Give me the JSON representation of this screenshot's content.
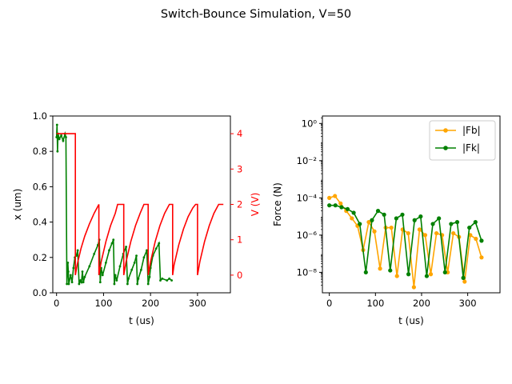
{
  "figure": {
    "title": "Switch-Bounce Simulation, V=50"
  },
  "colors": {
    "x_series": "#008000",
    "v_series": "#ff0000",
    "fb": "#ffa500",
    "fk": "#008000",
    "axis": "#000000"
  },
  "chart_data": [
    {
      "type": "line",
      "title": "",
      "xlabel": "t (us)",
      "ylabel": "x (um)",
      "ylabel_right": "V (V)",
      "xlim": [
        -8,
        370
      ],
      "ylim": [
        0.0,
        1.0
      ],
      "ylim_right": [
        -0.5,
        4.5
      ],
      "xticks": [
        0,
        100,
        200,
        300
      ],
      "yticks": [
        0.0,
        0.2,
        0.4,
        0.6,
        0.8,
        1.0
      ],
      "yticks_right": [
        0,
        1,
        2,
        3,
        4
      ],
      "grid": false,
      "series": [
        {
          "axis": "left",
          "color": "#008000",
          "x": [
            0,
            1,
            2,
            3,
            6,
            10,
            14,
            18,
            20,
            22,
            24,
            25,
            26,
            30,
            33,
            36,
            39,
            42,
            45,
            48,
            51,
            53,
            55,
            57,
            60,
            70,
            80,
            88,
            91,
            93,
            95,
            98,
            105,
            112,
            118,
            121,
            123,
            125,
            128,
            135,
            142,
            148,
            151,
            153,
            160,
            166,
            170,
            172,
            174,
            180,
            186,
            192,
            195,
            198,
            200,
            205,
            212,
            218,
            221,
            225,
            235,
            240,
            245
          ],
          "y": [
            0.88,
            0.95,
            0.8,
            0.9,
            0.87,
            0.89,
            0.86,
            0.9,
            0.88,
            0.05,
            0.17,
            0.12,
            0.05,
            0.1,
            0.06,
            0.14,
            0.2,
            0.21,
            0.24,
            0.05,
            0.07,
            0.06,
            0.12,
            0.06,
            0.09,
            0.15,
            0.22,
            0.27,
            0.3,
            0.06,
            0.14,
            0.1,
            0.17,
            0.24,
            0.28,
            0.3,
            0.05,
            0.1,
            0.07,
            0.15,
            0.22,
            0.26,
            0.05,
            0.08,
            0.13,
            0.17,
            0.21,
            0.05,
            0.08,
            0.13,
            0.2,
            0.24,
            0.05,
            0.09,
            0.14,
            0.21,
            0.25,
            0.28,
            0.07,
            0.08,
            0.07,
            0.08,
            0.07
          ]
        },
        {
          "axis": "right",
          "color": "#ff0000",
          "x": [
            0,
            20,
            40,
            40.1,
            44,
            52,
            60,
            70,
            80,
            90,
            90.1,
            95,
            105,
            115,
            125,
            130,
            135,
            143,
            143.1,
            148,
            158,
            168,
            178,
            186,
            190,
            195,
            195.1,
            200,
            210,
            220,
            230,
            240,
            247,
            247.1,
            250,
            260,
            270,
            280,
            290,
            296,
            300,
            300.1,
            305,
            315,
            325,
            335,
            345,
            355
          ],
          "y": [
            4.0,
            4.0,
            4.0,
            0.0,
            0.3,
            0.75,
            1.1,
            1.45,
            1.75,
            2.0,
            0.0,
            0.38,
            0.95,
            1.4,
            1.75,
            2.0,
            2.0,
            2.0,
            0.0,
            0.38,
            0.95,
            1.4,
            1.75,
            2.0,
            2.0,
            2.0,
            0.0,
            0.38,
            0.95,
            1.4,
            1.75,
            2.0,
            2.0,
            0.0,
            0.28,
            0.85,
            1.3,
            1.65,
            1.9,
            2.0,
            2.0,
            0.0,
            0.38,
            0.95,
            1.4,
            1.75,
            2.0,
            2.0
          ]
        }
      ]
    },
    {
      "type": "line",
      "title": "",
      "xlabel": "t (us)",
      "ylabel": "Force (N)",
      "yscale": "log",
      "xlim": [
        -15,
        370
      ],
      "ylim_exp": [
        -9.1,
        0.4
      ],
      "xticks": [
        0,
        100,
        200,
        300
      ],
      "ytick_labels": [
        "10⁰",
        "10⁻²",
        "10⁻⁴",
        "10⁻⁶",
        "10⁻⁸"
      ],
      "ytick_exps": [
        0,
        -2,
        -4,
        -6,
        -8
      ],
      "grid": false,
      "legend": {
        "position": "top-right",
        "entries": [
          "|Fb|",
          "|Fk|"
        ]
      },
      "series": [
        {
          "name": "|Fb|",
          "color": "#ffa500",
          "log10_y": [
            -4.0,
            -3.9,
            -4.3,
            -4.7,
            -5.1,
            -5.5,
            -6.8,
            -5.3,
            -5.8,
            -7.8,
            -5.6,
            -5.6,
            -8.2,
            -5.7,
            -5.9,
            -8.8,
            -5.7,
            -6.0,
            -8.1,
            -5.9,
            -6.0,
            -8.0,
            -5.9,
            -6.1,
            -8.5,
            -6.0,
            -6.2,
            -7.2
          ]
        },
        {
          "name": "|Fk|",
          "color": "#008000",
          "log10_y": [
            -4.4,
            -4.4,
            -4.5,
            -4.6,
            -4.8,
            -5.4,
            -8.0,
            -5.2,
            -4.7,
            -4.9,
            -7.9,
            -5.1,
            -4.9,
            -8.1,
            -5.2,
            -5.0,
            -8.2,
            -5.4,
            -5.1,
            -8.0,
            -5.4,
            -5.3,
            -8.3,
            -5.6,
            -5.3,
            -6.3
          ]
        }
      ]
    }
  ]
}
